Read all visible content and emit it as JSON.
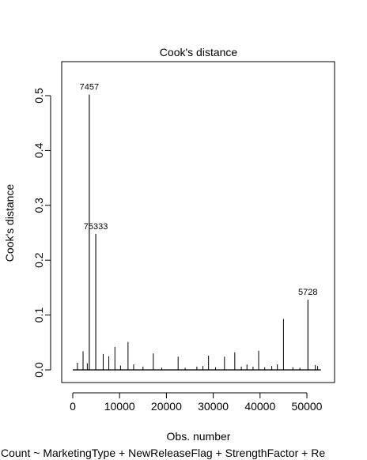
{
  "chart_data": {
    "type": "bar",
    "title": "Cook's distance",
    "xlabel": "Obs. number",
    "ylabel": "Cook's distance",
    "subtitle": "Count ~ MarketingType + NewReleaseFlag + StrengthFactor + Re",
    "xlim": [
      0,
      53500
    ],
    "ylim": [
      0,
      0.53
    ],
    "xticks": [
      0,
      10000,
      20000,
      30000,
      40000,
      50000
    ],
    "xtick_labels": [
      "0",
      "10000",
      "20000",
      "30000",
      "40000",
      "50000"
    ],
    "yticks": [
      0.0,
      0.1,
      0.2,
      0.3,
      0.4,
      0.5
    ],
    "ytick_labels": [
      "0.0",
      "0.1",
      "0.2",
      "0.3",
      "0.4",
      "0.5"
    ],
    "grid": false,
    "labeled_points": [
      {
        "x": 3530,
        "y": 0.502,
        "label": "7457"
      },
      {
        "x": 4910,
        "y": 0.248,
        "label": "75333"
      },
      {
        "x": 50220,
        "y": 0.128,
        "label": "5728"
      }
    ],
    "spikes": [
      {
        "x": 1000,
        "y": 0.013
      },
      {
        "x": 2200,
        "y": 0.034
      },
      {
        "x": 3100,
        "y": 0.012
      },
      {
        "x": 6500,
        "y": 0.029
      },
      {
        "x": 7700,
        "y": 0.025
      },
      {
        "x": 9000,
        "y": 0.042
      },
      {
        "x": 10200,
        "y": 0.008
      },
      {
        "x": 11800,
        "y": 0.051
      },
      {
        "x": 13000,
        "y": 0.01
      },
      {
        "x": 15000,
        "y": 0.006
      },
      {
        "x": 17200,
        "y": 0.03
      },
      {
        "x": 19000,
        "y": 0.004
      },
      {
        "x": 22500,
        "y": 0.024
      },
      {
        "x": 24000,
        "y": 0.004
      },
      {
        "x": 26500,
        "y": 0.006
      },
      {
        "x": 27800,
        "y": 0.007
      },
      {
        "x": 29000,
        "y": 0.026
      },
      {
        "x": 30500,
        "y": 0.005
      },
      {
        "x": 32400,
        "y": 0.024
      },
      {
        "x": 34600,
        "y": 0.032
      },
      {
        "x": 36000,
        "y": 0.006
      },
      {
        "x": 37200,
        "y": 0.01
      },
      {
        "x": 38500,
        "y": 0.006
      },
      {
        "x": 39700,
        "y": 0.035
      },
      {
        "x": 41000,
        "y": 0.005
      },
      {
        "x": 42500,
        "y": 0.007
      },
      {
        "x": 43700,
        "y": 0.01
      },
      {
        "x": 45000,
        "y": 0.093
      },
      {
        "x": 47000,
        "y": 0.005
      },
      {
        "x": 48500,
        "y": 0.004
      },
      {
        "x": 51800,
        "y": 0.009
      },
      {
        "x": 52300,
        "y": 0.007
      }
    ]
  }
}
